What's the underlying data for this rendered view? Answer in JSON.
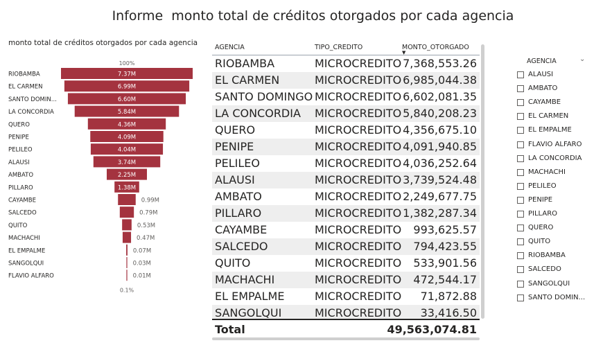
{
  "report": {
    "title": "Informe  monto total de créditos otorgados por cada agencia"
  },
  "funnel": {
    "title": "monto total de créditos otorgados por cada agencia",
    "top_percent": "100%",
    "bottom_percent": "0.1%",
    "bar_color": "#a4333f"
  },
  "chart_data": {
    "type": "bar",
    "orientation": "funnel",
    "title": "monto total de créditos otorgados por cada agencia",
    "categories": [
      "RIOBAMBA",
      "EL CARMEN",
      "SANTO DOMIN...",
      "LA CONCORDIA",
      "QUERO",
      "PENIPE",
      "PELILEO",
      "ALAUSI",
      "AMBATO",
      "PILLARO",
      "CAYAMBE",
      "SALCEDO",
      "QUITO",
      "MACHACHI",
      "EL EMPALME",
      "SANGOLQUI",
      "FLAVIO ALFARO"
    ],
    "values": [
      7.37,
      6.99,
      6.6,
      5.84,
      4.36,
      4.09,
      4.04,
      3.74,
      2.25,
      1.38,
      0.99,
      0.79,
      0.53,
      0.47,
      0.07,
      0.03,
      0.01
    ],
    "labels": [
      "7.37M",
      "6.99M",
      "6.60M",
      "5.84M",
      "4.36M",
      "4.09M",
      "4.04M",
      "3.74M",
      "2.25M",
      "1.38M",
      "0.99M",
      "0.79M",
      "0.53M",
      "0.47M",
      "0.07M",
      "0.03M",
      "0.01M"
    ],
    "unit": "M"
  },
  "table": {
    "columns": [
      "AGENCIA",
      "TIPO_CREDITO",
      "MONTO_OTORGADO"
    ],
    "rows": [
      [
        "RIOBAMBA",
        "MICROCREDITO",
        "7,368,553.26"
      ],
      [
        "EL CARMEN",
        "MICROCREDITO",
        "6,985,044.38"
      ],
      [
        "SANTO DOMINGO",
        "MICROCREDITO",
        "6,602,081.35"
      ],
      [
        "LA CONCORDIA",
        "MICROCREDITO",
        "5,840,208.23"
      ],
      [
        "QUERO",
        "MICROCREDITO",
        "4,356,675.10"
      ],
      [
        "PENIPE",
        "MICROCREDITO",
        "4,091,940.85"
      ],
      [
        "PELILEO",
        "MICROCREDITO",
        "4,036,252.64"
      ],
      [
        "ALAUSI",
        "MICROCREDITO",
        "3,739,524.48"
      ],
      [
        "AMBATO",
        "MICROCREDITO",
        "2,249,677.75"
      ],
      [
        "PILLARO",
        "MICROCREDITO",
        "1,382,287.34"
      ],
      [
        "CAYAMBE",
        "MICROCREDITO",
        "993,625.57"
      ],
      [
        "SALCEDO",
        "MICROCREDITO",
        "794,423.55"
      ],
      [
        "QUITO",
        "MICROCREDITO",
        "533,901.56"
      ],
      [
        "MACHACHI",
        "MICROCREDITO",
        "472,544.17"
      ],
      [
        "EL EMPALME",
        "MICROCREDITO",
        "71,872.88"
      ],
      [
        "SANGOLQUI",
        "MICROCREDITO",
        "33,416.50"
      ]
    ],
    "total_label": "Total",
    "total_value": "49,563,074.81"
  },
  "slicer": {
    "title": "AGENCIA",
    "items": [
      "ALAUSI",
      "AMBATO",
      "CAYAMBE",
      "EL CARMEN",
      "EL EMPALME",
      "FLAVIO ALFARO",
      "LA CONCORDIA",
      "MACHACHI",
      "PELILEO",
      "PENIPE",
      "PILLARO",
      "QUERO",
      "QUITO",
      "RIOBAMBA",
      "SALCEDO",
      "SANGOLQUI",
      "SANTO DOMIN..."
    ]
  }
}
